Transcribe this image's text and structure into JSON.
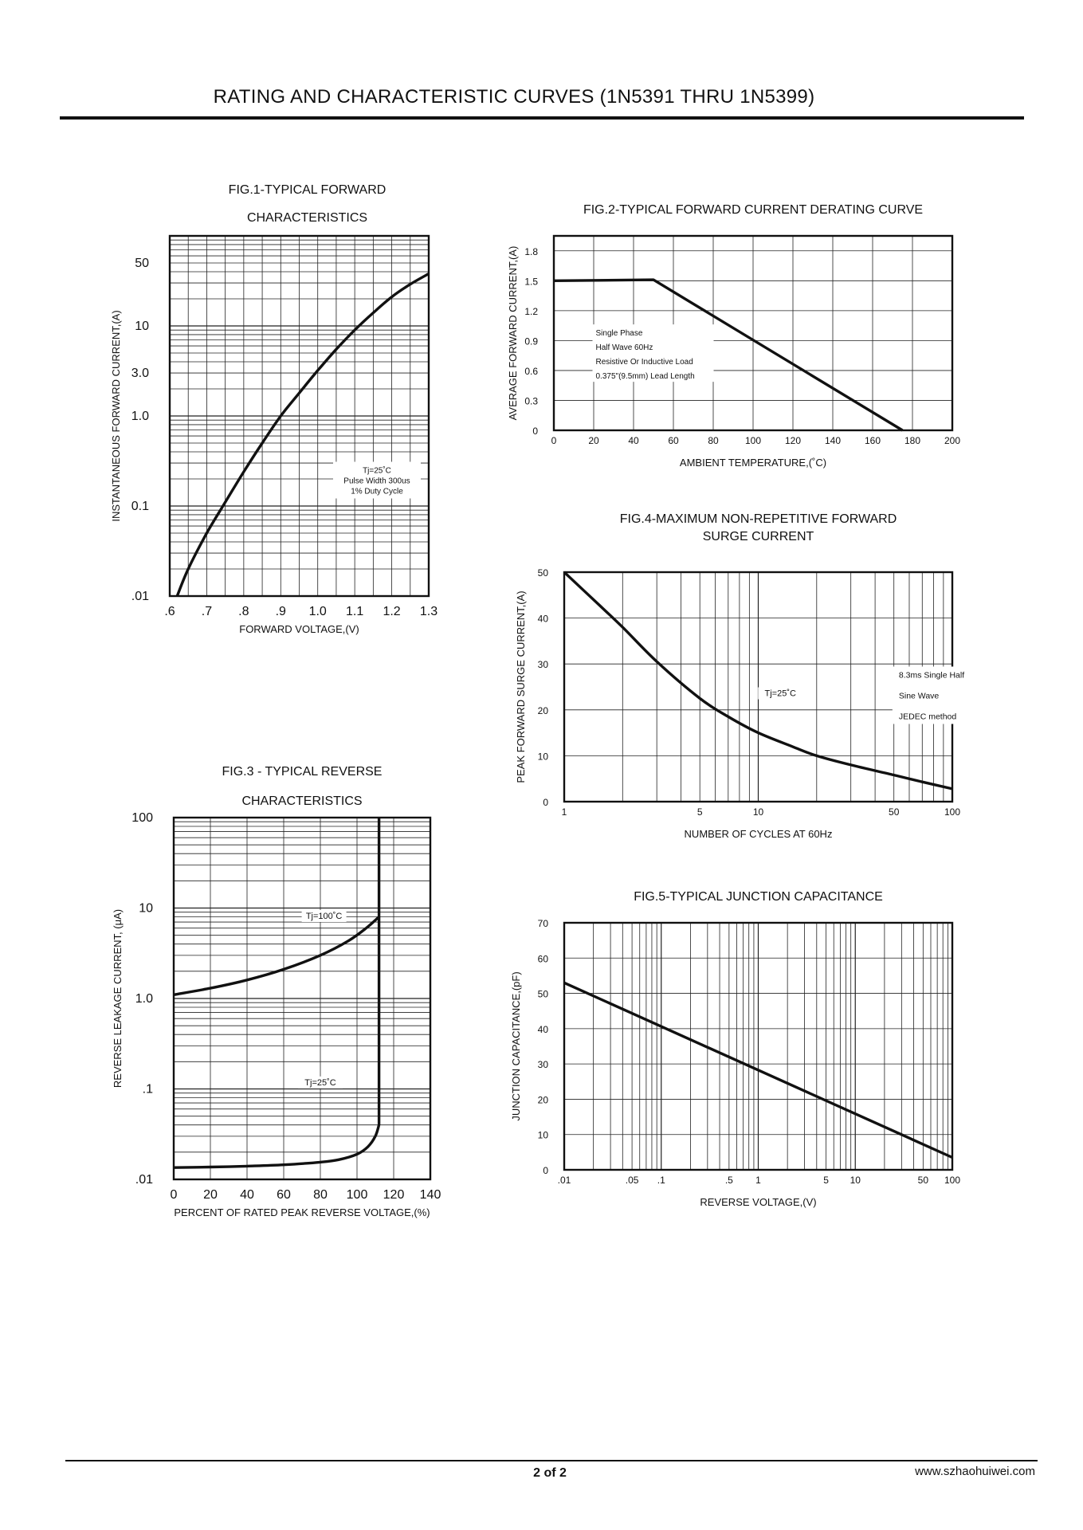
{
  "page": {
    "title": "RATING AND CHARACTERISTIC CURVES (1N5391 THRU 1N5399)",
    "page_number": "2 of  2",
    "website": "www.szhaohuiwei.com"
  },
  "chart_data": [
    {
      "id": "fig1",
      "type": "line",
      "yscale": "log",
      "xscale": "linear",
      "title_lines": [
        "FIG.1-TYPICAL FORWARD",
        "CHARACTERISTICS"
      ],
      "xlabel": "FORWARD VOLTAGE,(V)",
      "ylabel": "INSTANTANEOUS FORWARD CURRENT,(A)",
      "xlim": [
        0.6,
        1.3
      ],
      "ylim": [
        0.01,
        100
      ],
      "x_ticks": [
        0.6,
        0.7,
        0.8,
        0.9,
        1.0,
        1.1,
        1.2,
        1.3
      ],
      "x_tick_labels": [
        ".6",
        ".7",
        ".8",
        ".9",
        "1.0",
        "1.1",
        "1.2",
        "1.3"
      ],
      "y_ticks": [
        0.01,
        0.1,
        1.0,
        3.0,
        10,
        50
      ],
      "y_tick_labels": [
        ".01",
        "0.1",
        "1.0",
        "3.0",
        "10",
        "50"
      ],
      "annotation": [
        "Tj=25˚C",
        "Pulse Width 300us",
        "1% Duty Cycle"
      ],
      "x": [
        0.62,
        0.65,
        0.7,
        0.75,
        0.8,
        0.85,
        0.9,
        0.95,
        1.0,
        1.05,
        1.1,
        1.15,
        1.2,
        1.25,
        1.3
      ],
      "y": [
        0.01,
        0.02,
        0.05,
        0.11,
        0.24,
        0.5,
        1.0,
        1.8,
        3.2,
        5.5,
        9.0,
        14,
        21,
        29,
        38
      ]
    },
    {
      "id": "fig2",
      "type": "line",
      "title_lines": [
        "FIG.2-TYPICAL FORWARD CURRENT DERATING CURVE"
      ],
      "xlabel": "AMBIENT TEMPERATURE,(˚C)",
      "ylabel": "AVERAGE FORWARD CURRENT,(A)",
      "xlim": [
        0,
        200
      ],
      "ylim": [
        0,
        1.95
      ],
      "x_ticks": [
        0,
        20,
        40,
        60,
        80,
        100,
        120,
        140,
        160,
        180,
        200
      ],
      "x_tick_labels": [
        "0",
        "20",
        "40",
        "60",
        "80",
        "100",
        "120",
        "140",
        "160",
        "180",
        "200"
      ],
      "y_ticks": [
        0,
        0.3,
        0.6,
        0.9,
        1.2,
        1.5,
        1.8
      ],
      "y_tick_labels": [
        "0",
        "0.3",
        "0.6",
        "0.9",
        "1.2",
        "1.5",
        "1.8"
      ],
      "annotation": [
        "Single Phase",
        "Half Wave 60Hz",
        "Resistive Or Inductive Load",
        "0.375\"(9.5mm) Lead Length"
      ],
      "x": [
        0,
        50,
        175
      ],
      "y": [
        1.5,
        1.51,
        0
      ]
    },
    {
      "id": "fig3",
      "type": "line",
      "yscale": "log",
      "title_lines": [
        "FIG.3 - TYPICAL REVERSE",
        "CHARACTERISTICS"
      ],
      "xlabel": "PERCENT OF RATED PEAK REVERSE VOLTAGE,(%)",
      "ylabel": "REVERSE LEAKAGE CURRENT, (μA)",
      "xlim": [
        0,
        140
      ],
      "ylim": [
        0.01,
        100
      ],
      "x_ticks": [
        0,
        20,
        40,
        60,
        80,
        100,
        120,
        140
      ],
      "x_tick_labels": [
        "0",
        "20",
        "40",
        "60",
        "80",
        "100",
        "120",
        "140"
      ],
      "y_ticks": [
        0.01,
        0.1,
        1.0,
        10,
        100
      ],
      "y_tick_labels": [
        ".01",
        ".1",
        "1.0",
        "10",
        "100"
      ],
      "series": [
        {
          "name": "Tj=100˚C",
          "x": [
            0,
            20,
            40,
            60,
            80,
            95,
            105,
            112
          ],
          "y": [
            1.1,
            1.3,
            1.6,
            2.1,
            3.0,
            4.3,
            6.0,
            8.0
          ]
        },
        {
          "name": "Tj=25˚C",
          "x": [
            0,
            20,
            40,
            60,
            80,
            90,
            100,
            106,
            110,
            112
          ],
          "y": [
            0.0135,
            0.0137,
            0.014,
            0.0145,
            0.0155,
            0.0165,
            0.019,
            0.023,
            0.03,
            0.04
          ]
        }
      ],
      "breakdown_x": 112
    },
    {
      "id": "fig4",
      "type": "line",
      "xscale": "log",
      "title_lines": [
        "FIG.4-MAXIMUM NON-REPETITIVE FORWARD",
        "SURGE CURRENT"
      ],
      "xlabel": "NUMBER OF CYCLES AT 60Hz",
      "ylabel": "PEAK FORWARD SURGE CURRENT,(A)",
      "xlim": [
        1,
        100
      ],
      "ylim": [
        0,
        50
      ],
      "x_ticks": [
        1,
        5,
        10,
        50,
        100
      ],
      "x_tick_labels": [
        "1",
        "5",
        "10",
        "50",
        "100"
      ],
      "y_ticks": [
        0,
        10,
        20,
        30,
        40,
        50
      ],
      "y_tick_labels": [
        "0",
        "10",
        "20",
        "30",
        "40",
        "50"
      ],
      "annotation_temp": "Tj=25˚C",
      "annotation": [
        "8.3ms Single Half",
        "Sine Wave",
        "JEDEC method"
      ],
      "x": [
        1,
        1.5,
        2,
        3,
        5,
        7,
        10,
        15,
        20,
        30,
        50,
        70,
        100
      ],
      "y": [
        50,
        43,
        38,
        30.5,
        22.5,
        18.5,
        15,
        12,
        10,
        8,
        5.8,
        4.3,
        2.8
      ]
    },
    {
      "id": "fig5",
      "type": "line",
      "xscale": "log",
      "title_lines": [
        "FIG.5-TYPICAL JUNCTION CAPACITANCE"
      ],
      "xlabel": "REVERSE VOLTAGE,(V)",
      "ylabel": "JUNCTION CAPACITANCE,(pF)",
      "xlim": [
        0.01,
        100
      ],
      "ylim": [
        0,
        70
      ],
      "x_ticks": [
        0.01,
        0.05,
        0.1,
        0.5,
        1,
        5,
        10,
        50,
        100
      ],
      "x_tick_labels": [
        ".01",
        ".05",
        ".1",
        ".5",
        "1",
        "5",
        "10",
        "50",
        "100"
      ],
      "y_ticks": [
        0,
        10,
        20,
        30,
        40,
        50,
        60,
        70
      ],
      "y_tick_labels": [
        "0",
        "10",
        "20",
        "30",
        "40",
        "50",
        "60",
        "70"
      ],
      "x": [
        0.01,
        100
      ],
      "y": [
        53,
        3.5
      ]
    }
  ]
}
